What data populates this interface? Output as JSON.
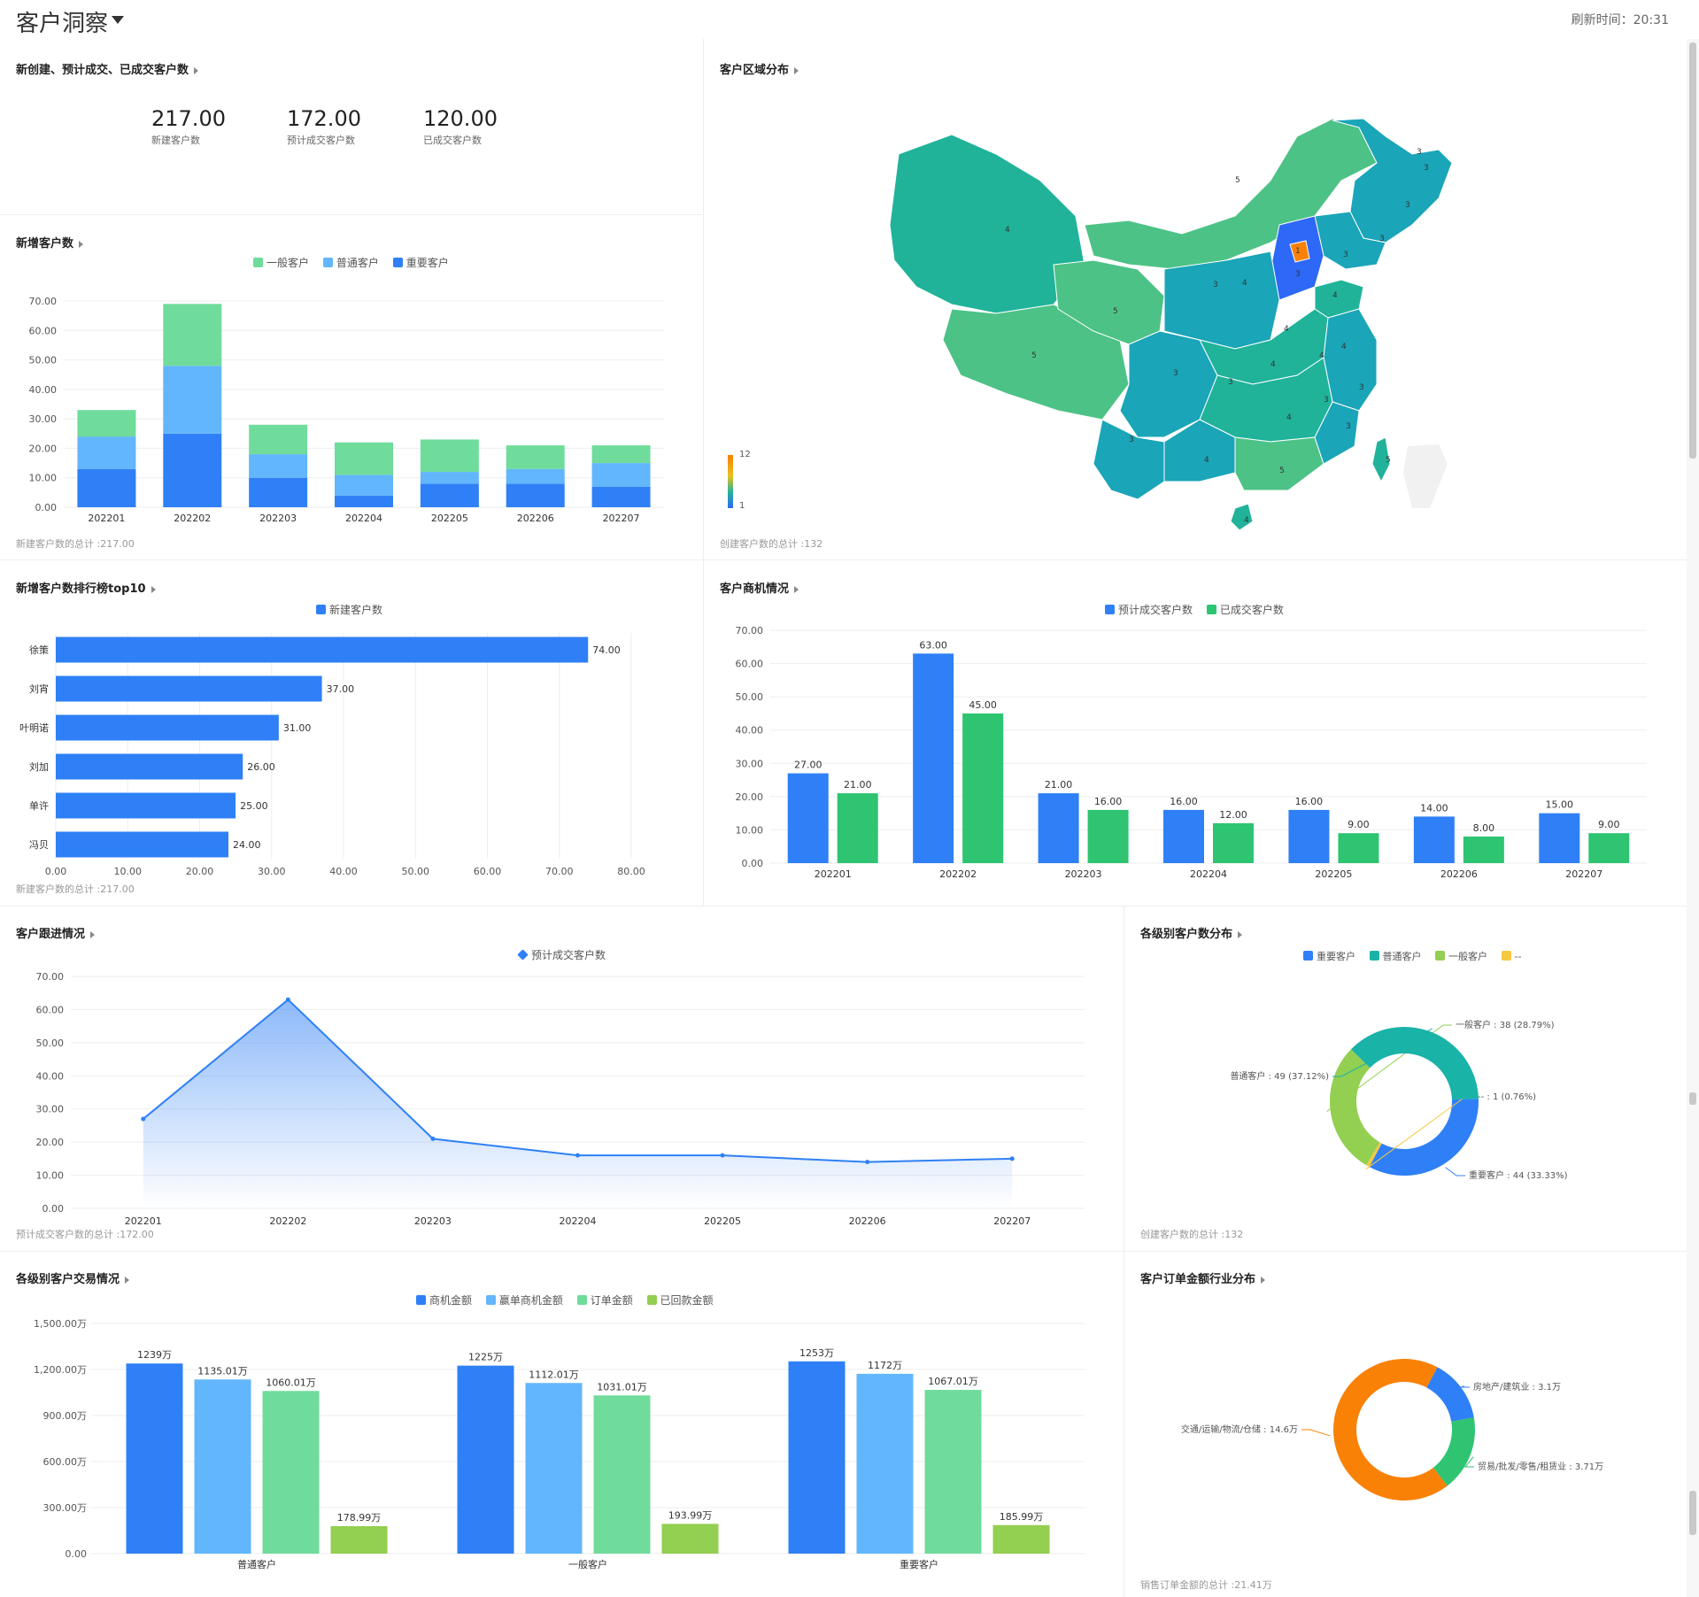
{
  "header": {
    "title": "客户洞察",
    "refresh": "刷新时间：20:31"
  },
  "kpi": {
    "title": "新创建、预计成交、已成交客户数",
    "items": [
      {
        "value": "217.00",
        "label": "新建客户数"
      },
      {
        "value": "172.00",
        "label": "预计成交客户数"
      },
      {
        "value": "120.00",
        "label": "已成交客户数"
      }
    ]
  },
  "new_customers": {
    "title": "新增客户数",
    "footer": "新建客户数的总计 :217.00",
    "legend": [
      "一般客户",
      "普通客户",
      "重要客户"
    ],
    "colors": [
      "#6fdc9b",
      "#62b6fb",
      "#2f80f6"
    ]
  },
  "region": {
    "title": "客户区域分布",
    "footer": "创建客户数的总计 :132",
    "scale_max": "12",
    "scale_min": "1",
    "labels": [
      "4",
      "5",
      "5",
      "5",
      "3",
      "3",
      "3",
      "3",
      "3",
      "4",
      "4",
      "4",
      "4",
      "4",
      "4",
      "3",
      "3",
      "3",
      "3",
      "3",
      "4",
      "3",
      "4",
      "5",
      "5",
      "4",
      "1",
      "3",
      "3"
    ]
  },
  "ranking": {
    "title": "新增客户数排行榜top10",
    "footer": "新建客户数的总计 :217.00",
    "legend": [
      "新建客户数"
    ],
    "color": "#2f80f6"
  },
  "opportunity": {
    "title": "客户商机情况",
    "legend": [
      "预计成交客户数",
      "已成交客户数"
    ],
    "colors": [
      "#2f80f6",
      "#2ec472"
    ]
  },
  "followup": {
    "title": "客户跟进情况",
    "footer": "预计成交客户数的总计 :172.00",
    "legend": [
      "预计成交客户数"
    ],
    "color": "#2f80f6"
  },
  "level_dist": {
    "title": "各级别客户数分布",
    "footer": "创建客户数的总计 :132",
    "legend": [
      "重要客户",
      "普通客户",
      "一般客户",
      "--"
    ],
    "colors": [
      "#2f80f6",
      "#19b3a8",
      "#93cf51",
      "#f5c842"
    ]
  },
  "transaction": {
    "title": "各级别客户交易情况",
    "legend": [
      "商机金额",
      "赢单商机金额",
      "订单金额",
      "已回款金额"
    ],
    "colors": [
      "#2f80f6",
      "#62b6fb",
      "#6fdc9b",
      "#93cf51"
    ]
  },
  "industry": {
    "title": "客户订单金额行业分布",
    "footer": "销售订单金额的总计 :21.41万",
    "colors": [
      "#2f80f6",
      "#2ec472",
      "#f98106"
    ]
  },
  "chart_data": [
    {
      "type": "bar",
      "stacked": true,
      "categories": [
        "202201",
        "202202",
        "202203",
        "202204",
        "202205",
        "202206",
        "202207"
      ],
      "series": [
        {
          "name": "重要客户",
          "values": [
            13,
            25,
            10,
            4,
            8,
            8,
            7
          ]
        },
        {
          "name": "普通客户",
          "values": [
            11,
            23,
            8,
            7,
            4,
            5,
            8
          ]
        },
        {
          "name": "一般客户",
          "values": [
            9,
            21,
            10,
            11,
            11,
            8,
            6
          ]
        }
      ],
      "ylim": [
        0,
        70
      ],
      "yticks": [
        "0.00",
        "10.00",
        "20.00",
        "30.00",
        "40.00",
        "50.00",
        "60.00",
        "70.00"
      ],
      "legend_position": "top-center",
      "grid": true
    },
    {
      "type": "bar",
      "orientation": "horizontal",
      "categories": [
        "徐策",
        "刘宵",
        "叶明诺",
        "刘加",
        "单许",
        "冯贝"
      ],
      "values": [
        74,
        37,
        31,
        26,
        25,
        24
      ],
      "data_labels": [
        "74.00",
        "37.00",
        "31.00",
        "26.00",
        "25.00",
        "24.00"
      ],
      "xlim": [
        0,
        80
      ],
      "xticks": [
        "0.00",
        "10.00",
        "20.00",
        "30.00",
        "40.00",
        "50.00",
        "60.00",
        "70.00",
        "80.00"
      ],
      "legend_position": "top-center",
      "grid": true
    },
    {
      "type": "bar",
      "categories": [
        "202201",
        "202202",
        "202203",
        "202204",
        "202205",
        "202206",
        "202207"
      ],
      "series": [
        {
          "name": "预计成交客户数",
          "values": [
            27,
            63,
            21,
            16,
            16,
            14,
            15
          ],
          "labels": [
            "27.00",
            "63.00",
            "21.00",
            "16.00",
            "16.00",
            "14.00",
            "15.00"
          ]
        },
        {
          "name": "已成交客户数",
          "values": [
            21,
            45,
            16,
            12,
            9,
            8,
            9
          ],
          "labels": [
            "21.00",
            "45.00",
            "16.00",
            "12.00",
            "9.00",
            "8.00",
            "9.00"
          ]
        }
      ],
      "ylim": [
        0,
        70
      ],
      "yticks": [
        "0.00",
        "10.00",
        "20.00",
        "30.00",
        "40.00",
        "50.00",
        "60.00",
        "70.00"
      ],
      "legend_position": "top-center",
      "grid": true
    },
    {
      "type": "area",
      "categories": [
        "202201",
        "202202",
        "202203",
        "202204",
        "202205",
        "202206",
        "202207"
      ],
      "series": [
        {
          "name": "预计成交客户数",
          "values": [
            27,
            63,
            21,
            16,
            16,
            14,
            15
          ]
        }
      ],
      "ylim": [
        0,
        70
      ],
      "yticks": [
        "0.00",
        "10.00",
        "20.00",
        "30.00",
        "40.00",
        "50.00",
        "60.00",
        "70.00"
      ],
      "legend_position": "top-center",
      "grid": true
    },
    {
      "type": "pie",
      "donut": true,
      "slices": [
        {
          "name": "重要客户",
          "value": 44,
          "label": "重要客户 : 44 (33.33%)"
        },
        {
          "name": "--",
          "value": 1,
          "label": "-- : 1 (0.76%)"
        },
        {
          "name": "一般客户",
          "value": 38,
          "label": "一般客户 : 38 (28.79%)"
        },
        {
          "name": "普通客户",
          "value": 49,
          "label": "普通客户 : 49 (37.12%)"
        }
      ]
    },
    {
      "type": "bar",
      "categories": [
        "普通客户",
        "一般客户",
        "重要客户"
      ],
      "series": [
        {
          "name": "商机金额",
          "values": [
            1239,
            1225,
            1253
          ],
          "labels": [
            "1239万",
            "1225万",
            "1253万"
          ]
        },
        {
          "name": "赢单商机金额",
          "values": [
            1135.01,
            1112.01,
            1172
          ],
          "labels": [
            "1135.01万",
            "1112.01万",
            "1172万"
          ]
        },
        {
          "name": "订单金额",
          "values": [
            1060.01,
            1031.01,
            1067.01
          ],
          "labels": [
            "1060.01万",
            "1031.01万",
            "1067.01万"
          ]
        },
        {
          "name": "已回款金额",
          "values": [
            178.99,
            193.99,
            185.99
          ],
          "labels": [
            "178.99万",
            "193.99万",
            "185.99万"
          ]
        }
      ],
      "ylim": [
        0,
        1500
      ],
      "yticks": [
        "0.00",
        "300.00万",
        "600.00万",
        "900.00万",
        "1,200.00万",
        "1,500.00万"
      ],
      "legend_position": "top-center",
      "grid": true
    },
    {
      "type": "pie",
      "donut": true,
      "slices": [
        {
          "name": "房地产/建筑业",
          "value": 3.1,
          "label": "房地产/建筑业 : 3.1万"
        },
        {
          "name": "贸易/批发/零售/租赁业",
          "value": 3.71,
          "label": "贸易/批发/零售/租赁业 : 3.71万"
        },
        {
          "name": "交通/运输/物流/仓储",
          "value": 14.6,
          "label": "交通/运输/物流/仓储 : 14.6万"
        }
      ]
    }
  ]
}
